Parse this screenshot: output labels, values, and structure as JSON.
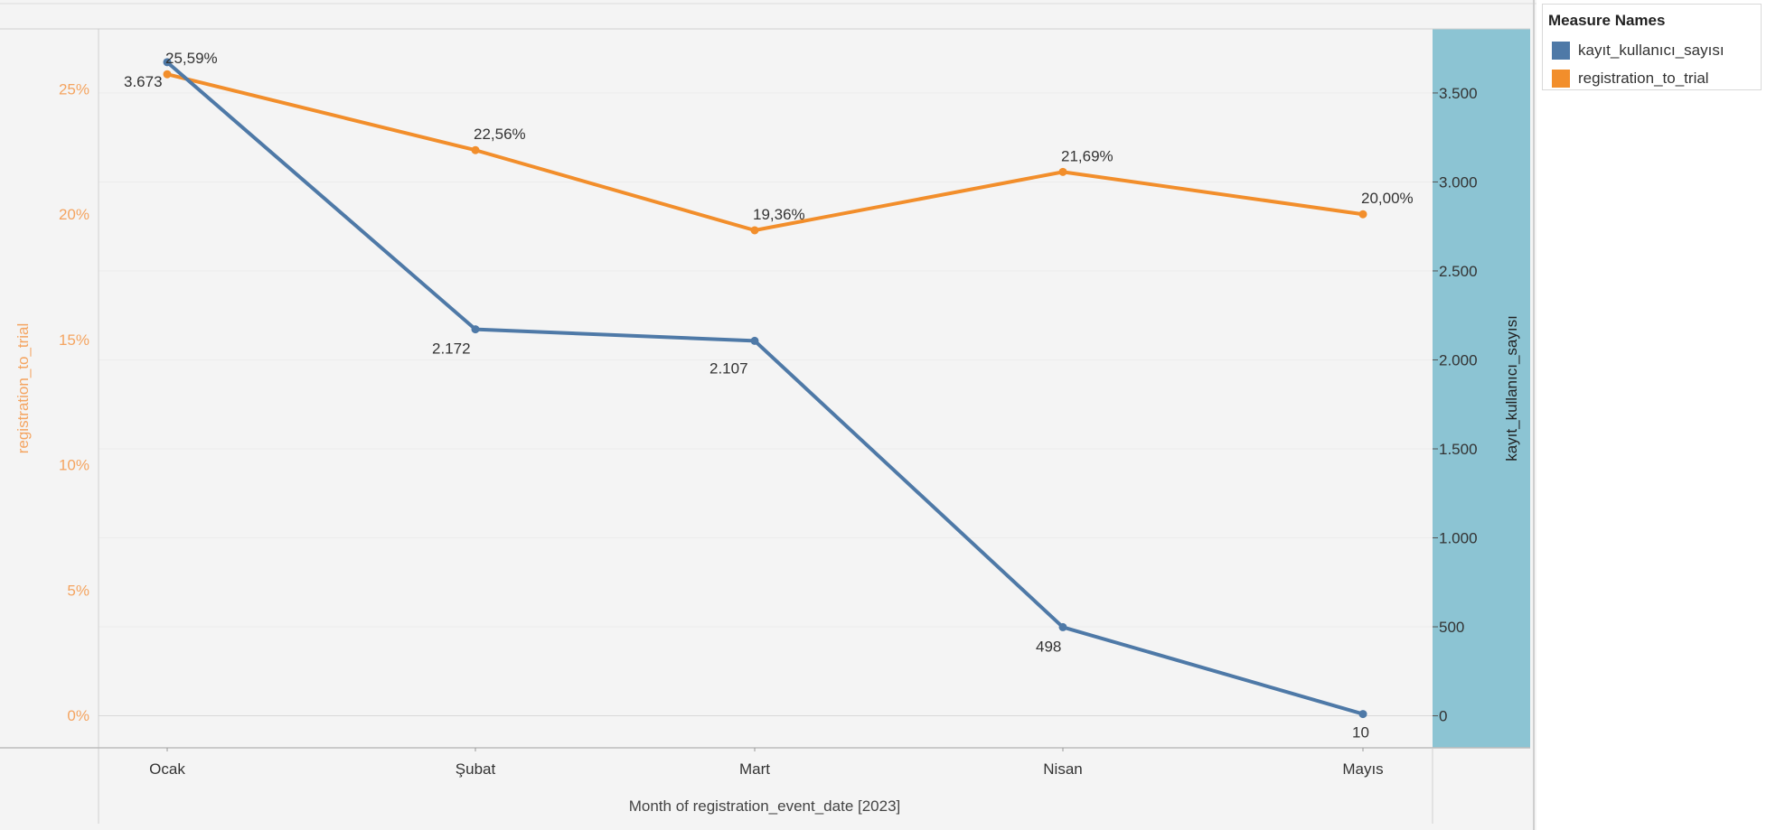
{
  "colors": {
    "kayit": "#4e79a7",
    "registration": "#f28e2b",
    "right_axis_bg": "#8cc4d3",
    "plot_bg": "#f4f4f4",
    "left_axis_text": "#f4a460"
  },
  "legend": {
    "title": "Measure Names",
    "items": [
      {
        "label": "kayıt_kullanıcı_sayısı",
        "color": "#4e79a7"
      },
      {
        "label": "registration_to_trial",
        "color": "#f28e2b"
      }
    ]
  },
  "chart_data": {
    "type": "line",
    "dual_axis": true,
    "xlabel": "Month of registration_event_date [2023]",
    "categories": [
      "Ocak",
      "Şubat",
      "Mart",
      "Nisan",
      "Mayıs"
    ],
    "series": [
      {
        "name": "registration_to_trial",
        "axis": "left",
        "color": "#f28e2b",
        "values": [
          25.59,
          22.56,
          19.36,
          21.69,
          20.0
        ],
        "labels": [
          "25,59%",
          "22,56%",
          "19,36%",
          "21,69%",
          "20,00%"
        ]
      },
      {
        "name": "kayıt_kullanıcı_sayısı",
        "axis": "right",
        "color": "#4e79a7",
        "values": [
          3673,
          2172,
          2107,
          498,
          10
        ],
        "labels": [
          "3.673",
          "2.172",
          "2.107",
          "498",
          "10"
        ]
      }
    ],
    "left_axis": {
      "label": "registration_to_trial",
      "ylim": [
        -1.3,
        27.4
      ],
      "ticks": [
        0,
        5,
        10,
        15,
        20,
        25
      ],
      "tick_labels": [
        "0%",
        "5%",
        "10%",
        "15%",
        "20%",
        "25%"
      ]
    },
    "right_axis": {
      "label": "kayıt_kullanıcı_sayısı",
      "ylim": [
        -180,
        3860
      ],
      "ticks": [
        0,
        500,
        1000,
        1500,
        2000,
        2500,
        3000,
        3500
      ],
      "tick_labels": [
        "0",
        "500",
        "1.000",
        "1.500",
        "2.000",
        "2.500",
        "3.000",
        "3.500"
      ]
    },
    "grid": true,
    "legend_position": "top-right"
  }
}
